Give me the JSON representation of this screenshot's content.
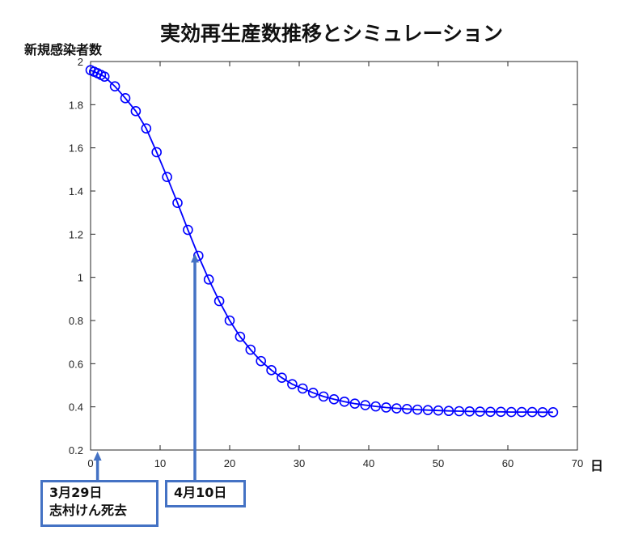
{
  "chart_data": {
    "type": "line",
    "title": "実効再生産数推移とシミュレーション",
    "ylabel": "新規感染者数",
    "xlabel": "日",
    "xlim": [
      0,
      70
    ],
    "ylim": [
      0.2,
      2
    ],
    "x_ticks": [
      0,
      10,
      20,
      30,
      40,
      50,
      60,
      70
    ],
    "y_ticks": [
      0.2,
      0.4,
      0.6,
      0.8,
      1,
      1.2,
      1.4,
      1.6,
      1.8,
      2
    ],
    "series": [
      {
        "color": "#0000ff",
        "marker": "circle",
        "x": [
          0,
          0.5,
          1,
          1.5,
          2,
          3.5,
          5,
          6.5,
          8,
          9.5,
          11,
          12.5,
          14,
          15.5,
          17,
          18.5,
          20,
          21.5,
          23,
          24.5,
          26,
          27.5,
          29,
          30.5,
          32,
          33.5,
          35,
          36.5,
          38,
          39.5,
          41,
          42.5,
          44,
          45.5,
          47,
          48.5,
          50,
          51.5,
          53,
          54.5,
          56,
          57.5,
          59,
          60.5,
          62,
          63.5,
          65,
          66.5
        ],
        "y": [
          1.96,
          1.953,
          1.946,
          1.938,
          1.93,
          1.885,
          1.83,
          1.77,
          1.69,
          1.58,
          1.465,
          1.345,
          1.22,
          1.1,
          0.99,
          0.89,
          0.8,
          0.725,
          0.665,
          0.612,
          0.57,
          0.535,
          0.505,
          0.485,
          0.465,
          0.448,
          0.435,
          0.424,
          0.415,
          0.408,
          0.402,
          0.397,
          0.393,
          0.39,
          0.387,
          0.385,
          0.383,
          0.381,
          0.38,
          0.379,
          0.378,
          0.377,
          0.377,
          0.376,
          0.376,
          0.376,
          0.375,
          0.375
        ]
      }
    ],
    "annotations": [
      {
        "text": "3月29日\n志村けん死去",
        "x": 1
      },
      {
        "text": "4月10日",
        "x": 15
      }
    ],
    "arrow_color": "#4472c4",
    "grid": false
  }
}
